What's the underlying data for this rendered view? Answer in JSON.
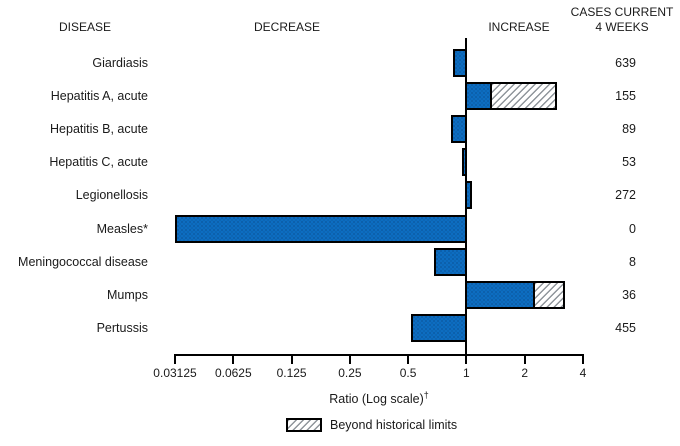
{
  "chart_data": {
    "type": "bar",
    "orientation": "horizontal",
    "x_scale": "log2",
    "title": "",
    "columns": {
      "disease": "DISEASE",
      "decrease": "DECREASE",
      "increase": "INCREASE",
      "cases_line1": "CASES CURRENT",
      "cases_line2": "4 WEEKS"
    },
    "xlabel": "Ratio (Log scale)",
    "xlabel_footnote": "†",
    "x_range": [
      0.03125,
      4
    ],
    "baseline": 1,
    "x_ticks": [
      "0.03125",
      "0.0625",
      "0.125",
      "0.25",
      "0.5",
      "1",
      "2",
      "4"
    ],
    "legend": {
      "hatched_label": "Beyond historical limits"
    },
    "rows": [
      {
        "disease": "Giardiasis",
        "ratio": 0.85,
        "beyond_historical_limit": null,
        "cases_current_4_weeks": "639"
      },
      {
        "disease": "Hepatitis A, acute",
        "ratio": 1.35,
        "beyond_historical_limit": 2.95,
        "cases_current_4_weeks": "155"
      },
      {
        "disease": "Hepatitis B, acute",
        "ratio": 0.83,
        "beyond_historical_limit": null,
        "cases_current_4_weeks": "89"
      },
      {
        "disease": "Hepatitis C, acute",
        "ratio": 0.95,
        "beyond_historical_limit": null,
        "cases_current_4_weeks": "53"
      },
      {
        "disease": "Legionellosis",
        "ratio": 1.07,
        "beyond_historical_limit": null,
        "cases_current_4_weeks": "272"
      },
      {
        "disease": "Measles*",
        "ratio": 0.03125,
        "beyond_historical_limit": null,
        "cases_current_4_weeks": "0"
      },
      {
        "disease": "Meningococcal disease",
        "ratio": 0.68,
        "beyond_historical_limit": null,
        "cases_current_4_weeks": "8"
      },
      {
        "disease": "Mumps",
        "ratio": 2.25,
        "beyond_historical_limit": 3.25,
        "cases_current_4_weeks": "36"
      },
      {
        "disease": "Pertussis",
        "ratio": 0.52,
        "beyond_historical_limit": null,
        "cases_current_4_weeks": "455"
      }
    ]
  },
  "colors": {
    "bar_fill": "#0d6dc1",
    "bar_dot_dark": "#083f7a",
    "bar_dot_mid": "#0a5499",
    "bar_border": "#000000",
    "hatch_line": "#8f959b",
    "hatch_bg": "#ffffff",
    "text": "#1a1a1a"
  }
}
